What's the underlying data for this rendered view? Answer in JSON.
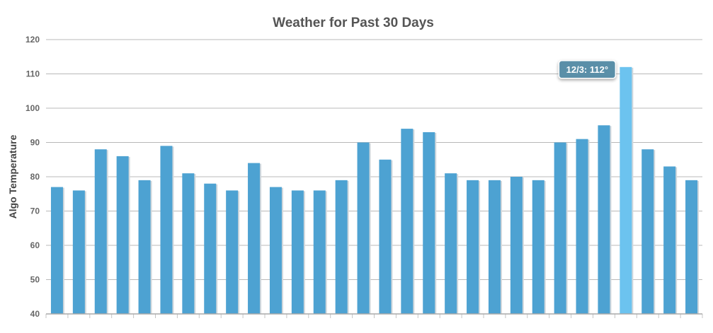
{
  "chart_data": {
    "type": "bar",
    "title": "Weather for Past 30 Days",
    "xlabel": "",
    "ylabel": "Algo Temperature",
    "ylim": [
      40,
      120
    ],
    "yticks": [
      40,
      50,
      60,
      70,
      80,
      90,
      100,
      110,
      120
    ],
    "grid": true,
    "legend": "none",
    "values": [
      77,
      76,
      88,
      86,
      79,
      89,
      81,
      78,
      76,
      84,
      77,
      76,
      76,
      79,
      90,
      85,
      94,
      93,
      81,
      79,
      79,
      80,
      79,
      90,
      91,
      95,
      112,
      88,
      83,
      79
    ],
    "highlight_index": 26,
    "tooltip": "12/3: 112°",
    "colors": {
      "bar": "#4da2d2",
      "bar_highlight": "#6cc3ef",
      "tooltip_bg": "#5a8fa8",
      "grid": "#b8b8b8"
    }
  }
}
